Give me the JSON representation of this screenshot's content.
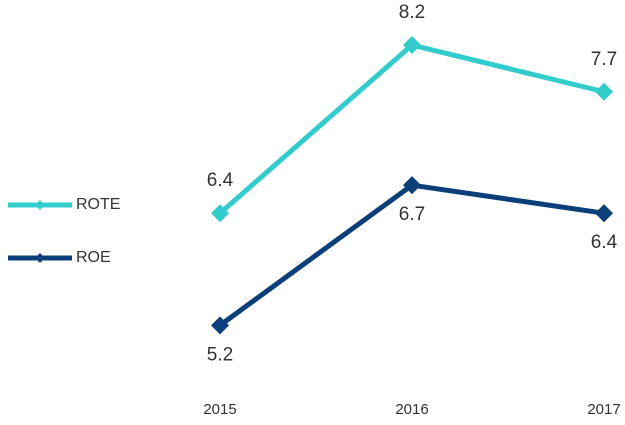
{
  "chart_data": {
    "type": "line",
    "categories": [
      "2015",
      "2016",
      "2017"
    ],
    "series": [
      {
        "name": "ROTE",
        "color": "#33cccc",
        "values": [
          6.4,
          8.2,
          7.7
        ]
      },
      {
        "name": "ROE",
        "color": "#0b3f7a",
        "values": [
          5.2,
          6.7,
          6.4
        ]
      }
    ],
    "ylim": [
      5,
      8.5
    ]
  }
}
